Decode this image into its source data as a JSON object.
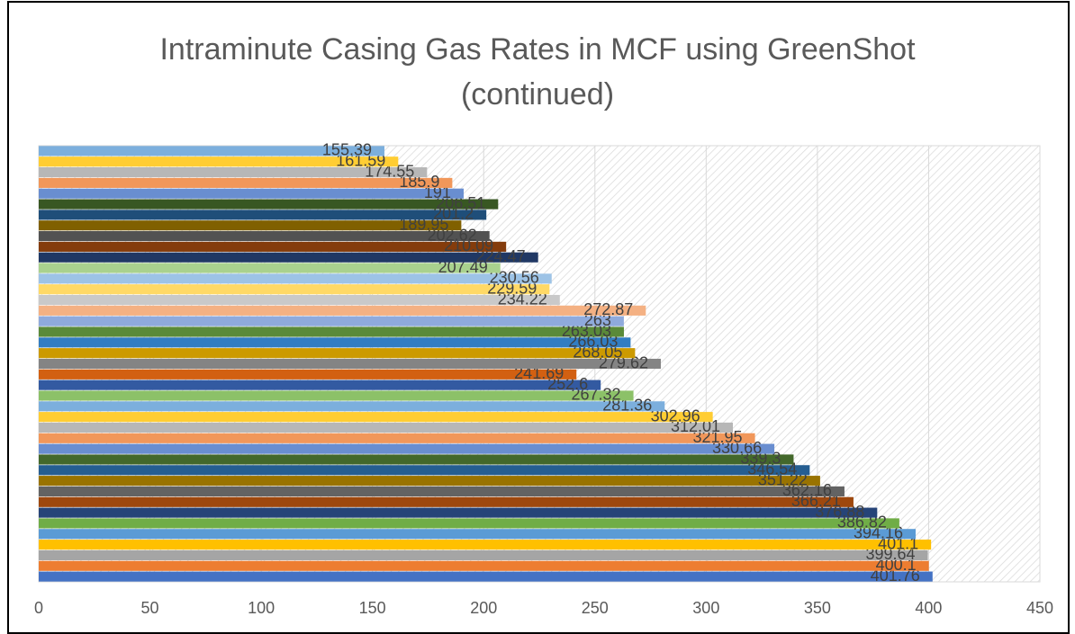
{
  "chart_data": {
    "type": "barh",
    "title": "Intraminute Casing Gas Rates in MCF using GreenShot (continued)",
    "values": [
      401.76,
      400.1,
      399.64,
      401.1,
      394.16,
      386.82,
      376.88,
      366.21,
      362.16,
      351.22,
      346.54,
      339.3,
      330.66,
      321.95,
      312.01,
      302.96,
      281.36,
      267.32,
      252.6,
      241.69,
      279.62,
      268.05,
      266.03,
      263.03,
      263,
      272.87,
      234.22,
      229.59,
      230.56,
      207.49,
      224.47,
      210.09,
      202.62,
      189.95,
      201.2,
      206.51,
      191,
      185.9,
      174.55,
      161.59,
      155.39
    ],
    "colors": [
      "#4472c4",
      "#ed7d31",
      "#a5a5a5",
      "#ffc000",
      "#5b9bd5",
      "#70ad47",
      "#264478",
      "#9e480e",
      "#636363",
      "#997300",
      "#255e91",
      "#43682b",
      "#698ed0",
      "#f1975a",
      "#b7b7b7",
      "#ffcd33",
      "#7cafdd",
      "#8cc168",
      "#335aa1",
      "#d26012",
      "#848484",
      "#cc9a00",
      "#327dc2",
      "#5a8a39",
      "#8faadc",
      "#f4b183",
      "#c9c9c9",
      "#ffd966",
      "#9dc3e6",
      "#a9d18e",
      "#203864",
      "#843c0c",
      "#525252",
      "#806000",
      "#1f4e79",
      "#385723",
      "#698ed0",
      "#f1975a",
      "#b7b7b7",
      "#ffcd33",
      "#7cafdd"
    ],
    "xlim": [
      0,
      450
    ],
    "xticks": [
      0,
      50,
      100,
      150,
      200,
      250,
      300,
      350,
      400,
      450
    ],
    "grid": true
  }
}
